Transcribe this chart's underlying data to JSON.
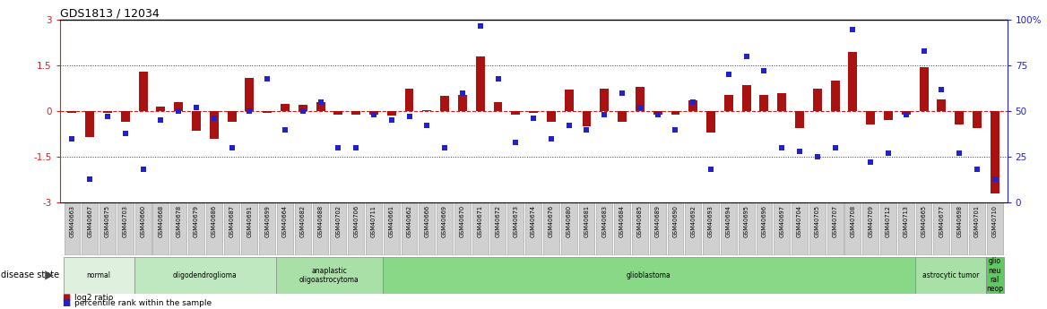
{
  "title": "GDS1813 / 12034",
  "samples": [
    "GSM40663",
    "GSM40667",
    "GSM40675",
    "GSM40703",
    "GSM40660",
    "GSM40668",
    "GSM40678",
    "GSM40679",
    "GSM40686",
    "GSM40687",
    "GSM40691",
    "GSM40699",
    "GSM40664",
    "GSM40682",
    "GSM40688",
    "GSM40702",
    "GSM40706",
    "GSM40711",
    "GSM40661",
    "GSM40662",
    "GSM40666",
    "GSM40669",
    "GSM40670",
    "GSM40671",
    "GSM40672",
    "GSM40673",
    "GSM40674",
    "GSM40676",
    "GSM40680",
    "GSM40681",
    "GSM40683",
    "GSM40684",
    "GSM40685",
    "GSM40689",
    "GSM40690",
    "GSM40692",
    "GSM40693",
    "GSM40694",
    "GSM40695",
    "GSM40696",
    "GSM40697",
    "GSM40704",
    "GSM40705",
    "GSM40707",
    "GSM40708",
    "GSM40709",
    "GSM40712",
    "GSM40713",
    "GSM40665",
    "GSM40677",
    "GSM40698",
    "GSM40701",
    "GSM40710"
  ],
  "log2_ratio": [
    -0.05,
    -0.85,
    -0.05,
    -0.35,
    1.3,
    0.15,
    0.3,
    -0.65,
    -0.9,
    -0.35,
    1.1,
    -0.05,
    0.25,
    0.2,
    0.3,
    -0.1,
    -0.1,
    -0.1,
    -0.15,
    0.75,
    0.05,
    0.5,
    0.55,
    1.8,
    0.3,
    -0.1,
    -0.05,
    -0.35,
    0.7,
    -0.5,
    0.75,
    -0.35,
    0.8,
    -0.1,
    -0.1,
    0.35,
    -0.7,
    0.55,
    0.85,
    0.55,
    0.6,
    -0.55,
    0.75,
    1.0,
    1.95,
    -0.45,
    -0.3,
    -0.1,
    1.45,
    0.4,
    -0.45,
    -0.55,
    -2.7
  ],
  "percentile": [
    35,
    13,
    47,
    38,
    18,
    45,
    50,
    52,
    46,
    30,
    50,
    68,
    40,
    50,
    55,
    30,
    30,
    48,
    45,
    47,
    42,
    30,
    60,
    97,
    68,
    33,
    46,
    35,
    42,
    40,
    48,
    60,
    52,
    48,
    40,
    55,
    18,
    70,
    80,
    72,
    30,
    28,
    25,
    30,
    95,
    22,
    27,
    48,
    83,
    62,
    27,
    18,
    13
  ],
  "groups": [
    {
      "label": "normal",
      "start": 0,
      "end": 4,
      "color": "#dff0df"
    },
    {
      "label": "oligodendroglioma",
      "start": 4,
      "end": 12,
      "color": "#c0e8c0"
    },
    {
      "label": "anaplastic\noligoastrocytoma",
      "start": 12,
      "end": 18,
      "color": "#a8e0a8"
    },
    {
      "label": "glioblastoma",
      "start": 18,
      "end": 48,
      "color": "#88d888"
    },
    {
      "label": "astrocytic tumor",
      "start": 48,
      "end": 52,
      "color": "#a8e0a8"
    },
    {
      "label": "glio\nneu\nral\nneop",
      "start": 52,
      "end": 53,
      "color": "#60c860"
    }
  ],
  "bar_color": "#aa1111",
  "dot_color": "#2222cc",
  "ylim": [
    -3,
    3
  ],
  "dotted_lines": [
    -1.5,
    1.5
  ],
  "zero_line_color": "#cc2222",
  "left_ytick_labels": [
    "-3",
    "-1.5",
    "0",
    "1.5",
    "3"
  ],
  "left_ytick_vals": [
    -3,
    -1.5,
    0,
    1.5,
    3
  ],
  "right_ytick_labels": [
    "0",
    "25",
    "50",
    "75",
    "100%"
  ],
  "right_ytick_pcts": [
    0,
    25,
    50,
    75,
    100
  ]
}
